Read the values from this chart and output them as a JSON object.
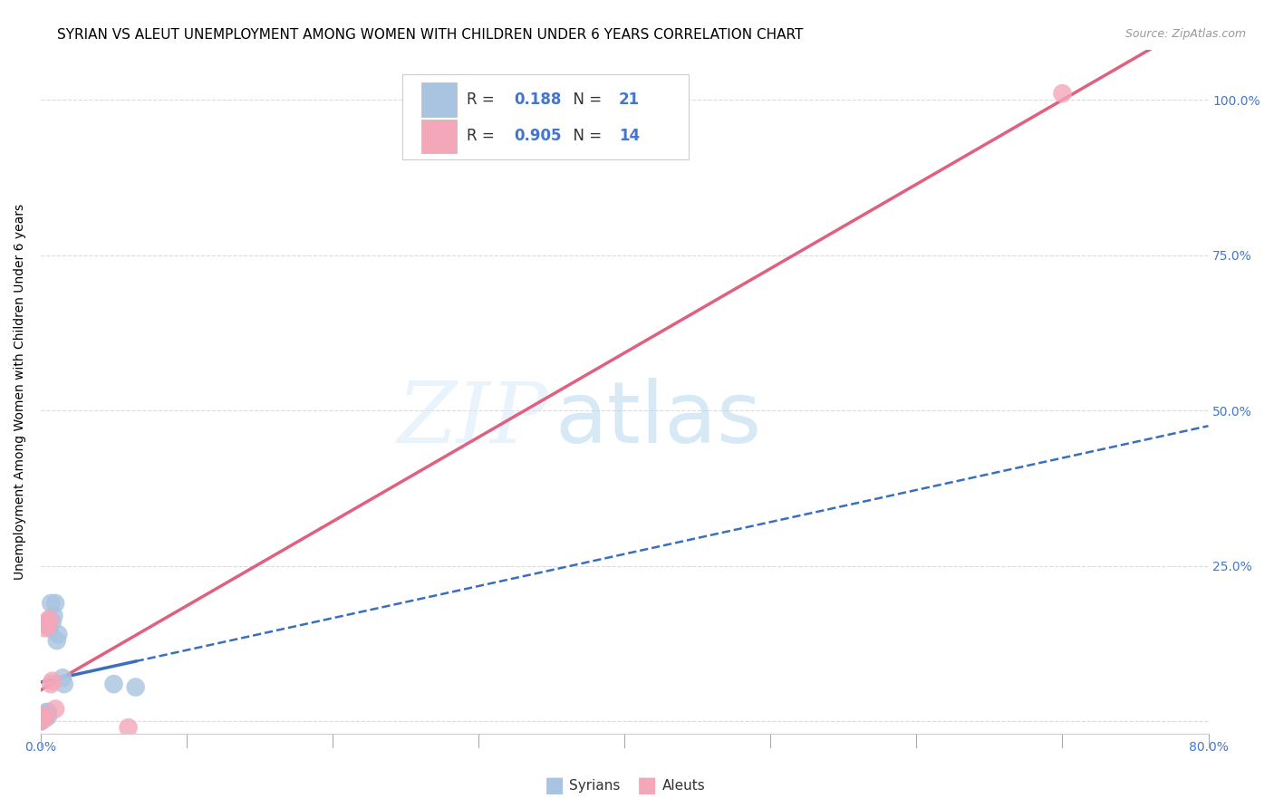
{
  "title": "SYRIAN VS ALEUT UNEMPLOYMENT AMONG WOMEN WITH CHILDREN UNDER 6 YEARS CORRELATION CHART",
  "source": "Source: ZipAtlas.com",
  "ylabel": "Unemployment Among Women with Children Under 6 years",
  "xlim": [
    0,
    0.8
  ],
  "ylim": [
    -0.02,
    1.08
  ],
  "xticks": [
    0.0,
    0.1,
    0.2,
    0.3,
    0.4,
    0.5,
    0.6,
    0.7,
    0.8
  ],
  "yticks": [
    0.0,
    0.25,
    0.5,
    0.75,
    1.0
  ],
  "xtick_labels": [
    "0.0%",
    "",
    "",
    "",
    "",
    "",
    "",
    "",
    "80.0%"
  ],
  "ytick_labels": [
    "",
    "25.0%",
    "50.0%",
    "75.0%",
    "100.0%"
  ],
  "legend_r_syrian": "0.188",
  "legend_n_syrian": "21",
  "legend_r_aleut": "0.905",
  "legend_n_aleut": "14",
  "syrian_color": "#a8c4e0",
  "aleut_color": "#f4a7b9",
  "syrian_line_color": "#3b6fbe",
  "aleut_line_color": "#e06080",
  "watermark_zip": "ZIP",
  "watermark_atlas": "atlas",
  "syrians_x": [
    0.0,
    0.0,
    0.0,
    0.002,
    0.003,
    0.003,
    0.004,
    0.004,
    0.005,
    0.005,
    0.006,
    0.007,
    0.008,
    0.009,
    0.01,
    0.011,
    0.012,
    0.015,
    0.016,
    0.05,
    0.065
  ],
  "syrians_y": [
    0.0,
    0.002,
    0.003,
    0.005,
    0.005,
    0.008,
    0.01,
    0.015,
    0.008,
    0.015,
    0.15,
    0.19,
    0.16,
    0.17,
    0.19,
    0.13,
    0.14,
    0.07,
    0.06,
    0.06,
    0.055
  ],
  "aleuts_x": [
    0.0,
    0.0,
    0.0,
    0.001,
    0.003,
    0.003,
    0.004,
    0.005,
    0.006,
    0.007,
    0.008,
    0.01,
    0.06,
    0.7
  ],
  "aleuts_y": [
    0.0,
    0.005,
    0.01,
    0.003,
    0.005,
    0.15,
    0.16,
    0.155,
    0.165,
    0.06,
    0.065,
    0.02,
    -0.01,
    1.01
  ],
  "background_color": "#ffffff",
  "grid_color": "#cccccc",
  "tick_color": "#4477cc",
  "title_fontsize": 11,
  "axis_label_fontsize": 10,
  "tick_fontsize": 10,
  "legend_fontsize": 12,
  "syrian_line_start_x": 0.0,
  "syrian_line_solid_end_x": 0.065,
  "syrian_line_dash_end_x": 0.8,
  "aleut_line_start_x": 0.0,
  "aleut_line_end_x": 0.8
}
